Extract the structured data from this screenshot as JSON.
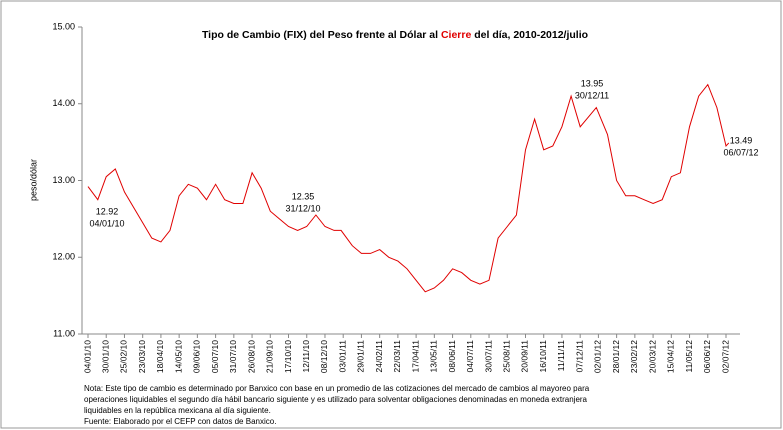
{
  "chart_data": {
    "type": "line",
    "title_parts": [
      "Tipo de Cambio (FIX) del Peso frente al Dólar al ",
      "Cierre",
      " del día, 2010-2012/julio"
    ],
    "title_highlight_color": "#e00000",
    "y_label": "peso/dólar",
    "ylim": [
      11,
      15
    ],
    "yticks": [
      {
        "value": 11,
        "label": "11.00"
      },
      {
        "value": 12,
        "label": "12.00"
      },
      {
        "value": 13,
        "label": "13.00"
      },
      {
        "value": 14,
        "label": "14.00"
      },
      {
        "value": 15,
        "label": "15.00"
      }
    ],
    "xticks": [
      "04/01/10",
      "30/01/10",
      "25/02/10",
      "23/03/10",
      "18/04/10",
      "14/05/10",
      "09/06/10",
      "05/07/10",
      "31/07/10",
      "26/08/10",
      "21/09/10",
      "17/10/10",
      "12/11/10",
      "08/12/10",
      "03/01/11",
      "29/01/11",
      "24/02/11",
      "22/03/11",
      "17/04/11",
      "13/05/11",
      "08/06/11",
      "04/07/11",
      "30/07/11",
      "25/08/11",
      "20/09/11",
      "16/10/11",
      "11/11/11",
      "07/12/11",
      "02/01/12",
      "28/01/12",
      "23/02/12",
      "20/03/12",
      "15/04/12",
      "11/05/12",
      "06/06/12",
      "02/07/12"
    ],
    "series": [
      {
        "name": "FIX",
        "color": "#e00000",
        "x": [
          "04/01/10",
          "18/01/10",
          "30/01/10",
          "12/02/10",
          "25/02/10",
          "10/03/10",
          "23/03/10",
          "05/04/10",
          "18/04/10",
          "01/05/10",
          "14/05/10",
          "27/05/10",
          "09/06/10",
          "22/06/10",
          "05/07/10",
          "18/07/10",
          "31/07/10",
          "13/08/10",
          "26/08/10",
          "08/09/10",
          "21/09/10",
          "04/10/10",
          "17/10/10",
          "30/10/10",
          "12/11/10",
          "25/11/10",
          "08/12/10",
          "21/12/10",
          "31/12/10",
          "16/01/11",
          "29/01/11",
          "11/02/11",
          "24/02/11",
          "09/03/11",
          "22/03/11",
          "04/04/11",
          "17/04/11",
          "30/04/11",
          "13/05/11",
          "26/05/11",
          "08/06/11",
          "21/06/11",
          "04/07/11",
          "17/07/11",
          "30/07/11",
          "12/08/11",
          "25/08/11",
          "07/09/11",
          "20/09/11",
          "03/10/11",
          "16/10/11",
          "29/10/11",
          "11/11/11",
          "24/11/11",
          "07/12/11",
          "30/12/11",
          "15/01/12",
          "28/01/12",
          "10/02/12",
          "23/02/12",
          "07/03/12",
          "20/03/12",
          "02/04/12",
          "15/04/12",
          "28/04/12",
          "11/05/12",
          "24/05/12",
          "06/06/12",
          "19/06/12",
          "02/07/12",
          "06/07/12"
        ],
        "values": [
          12.92,
          12.75,
          13.05,
          13.15,
          12.85,
          12.65,
          12.45,
          12.25,
          12.2,
          12.35,
          12.8,
          12.95,
          12.9,
          12.75,
          12.95,
          12.75,
          12.7,
          12.7,
          13.1,
          12.9,
          12.6,
          12.5,
          12.4,
          12.35,
          12.4,
          12.55,
          12.4,
          12.35,
          12.35,
          12.15,
          12.05,
          12.05,
          12.1,
          12.0,
          11.95,
          11.85,
          11.7,
          11.55,
          11.6,
          11.7,
          11.85,
          11.8,
          11.7,
          11.65,
          11.7,
          12.25,
          12.4,
          12.55,
          13.4,
          13.8,
          13.4,
          13.45,
          13.7,
          14.1,
          13.7,
          13.95,
          13.6,
          13.0,
          12.8,
          12.8,
          12.75,
          12.7,
          12.75,
          13.05,
          13.1,
          13.7,
          14.1,
          14.25,
          13.95,
          13.45,
          13.49
        ]
      }
    ],
    "annotations": [
      {
        "value": 12.92,
        "date": "04/01/10"
      },
      {
        "value": 12.35,
        "date": "31/12/10"
      },
      {
        "value": 13.95,
        "date": "30/12/11"
      },
      {
        "value": 13.49,
        "date": "06/07/12"
      }
    ],
    "notes": [
      "Nota: Este tipo de cambio es determinado por Banxico con base en un promedio de las cotizaciones del mercado de cambios al mayoreo para",
      "operaciones liquidables el segundo día hábil bancario siguiente y es utilizado  para solventar obligaciones denominadas en moneda extranjera",
      "liquidables en la república mexicana al día siguiente.",
      "Fuente: Elaborado por el CEFP con datos de Banxico."
    ]
  }
}
